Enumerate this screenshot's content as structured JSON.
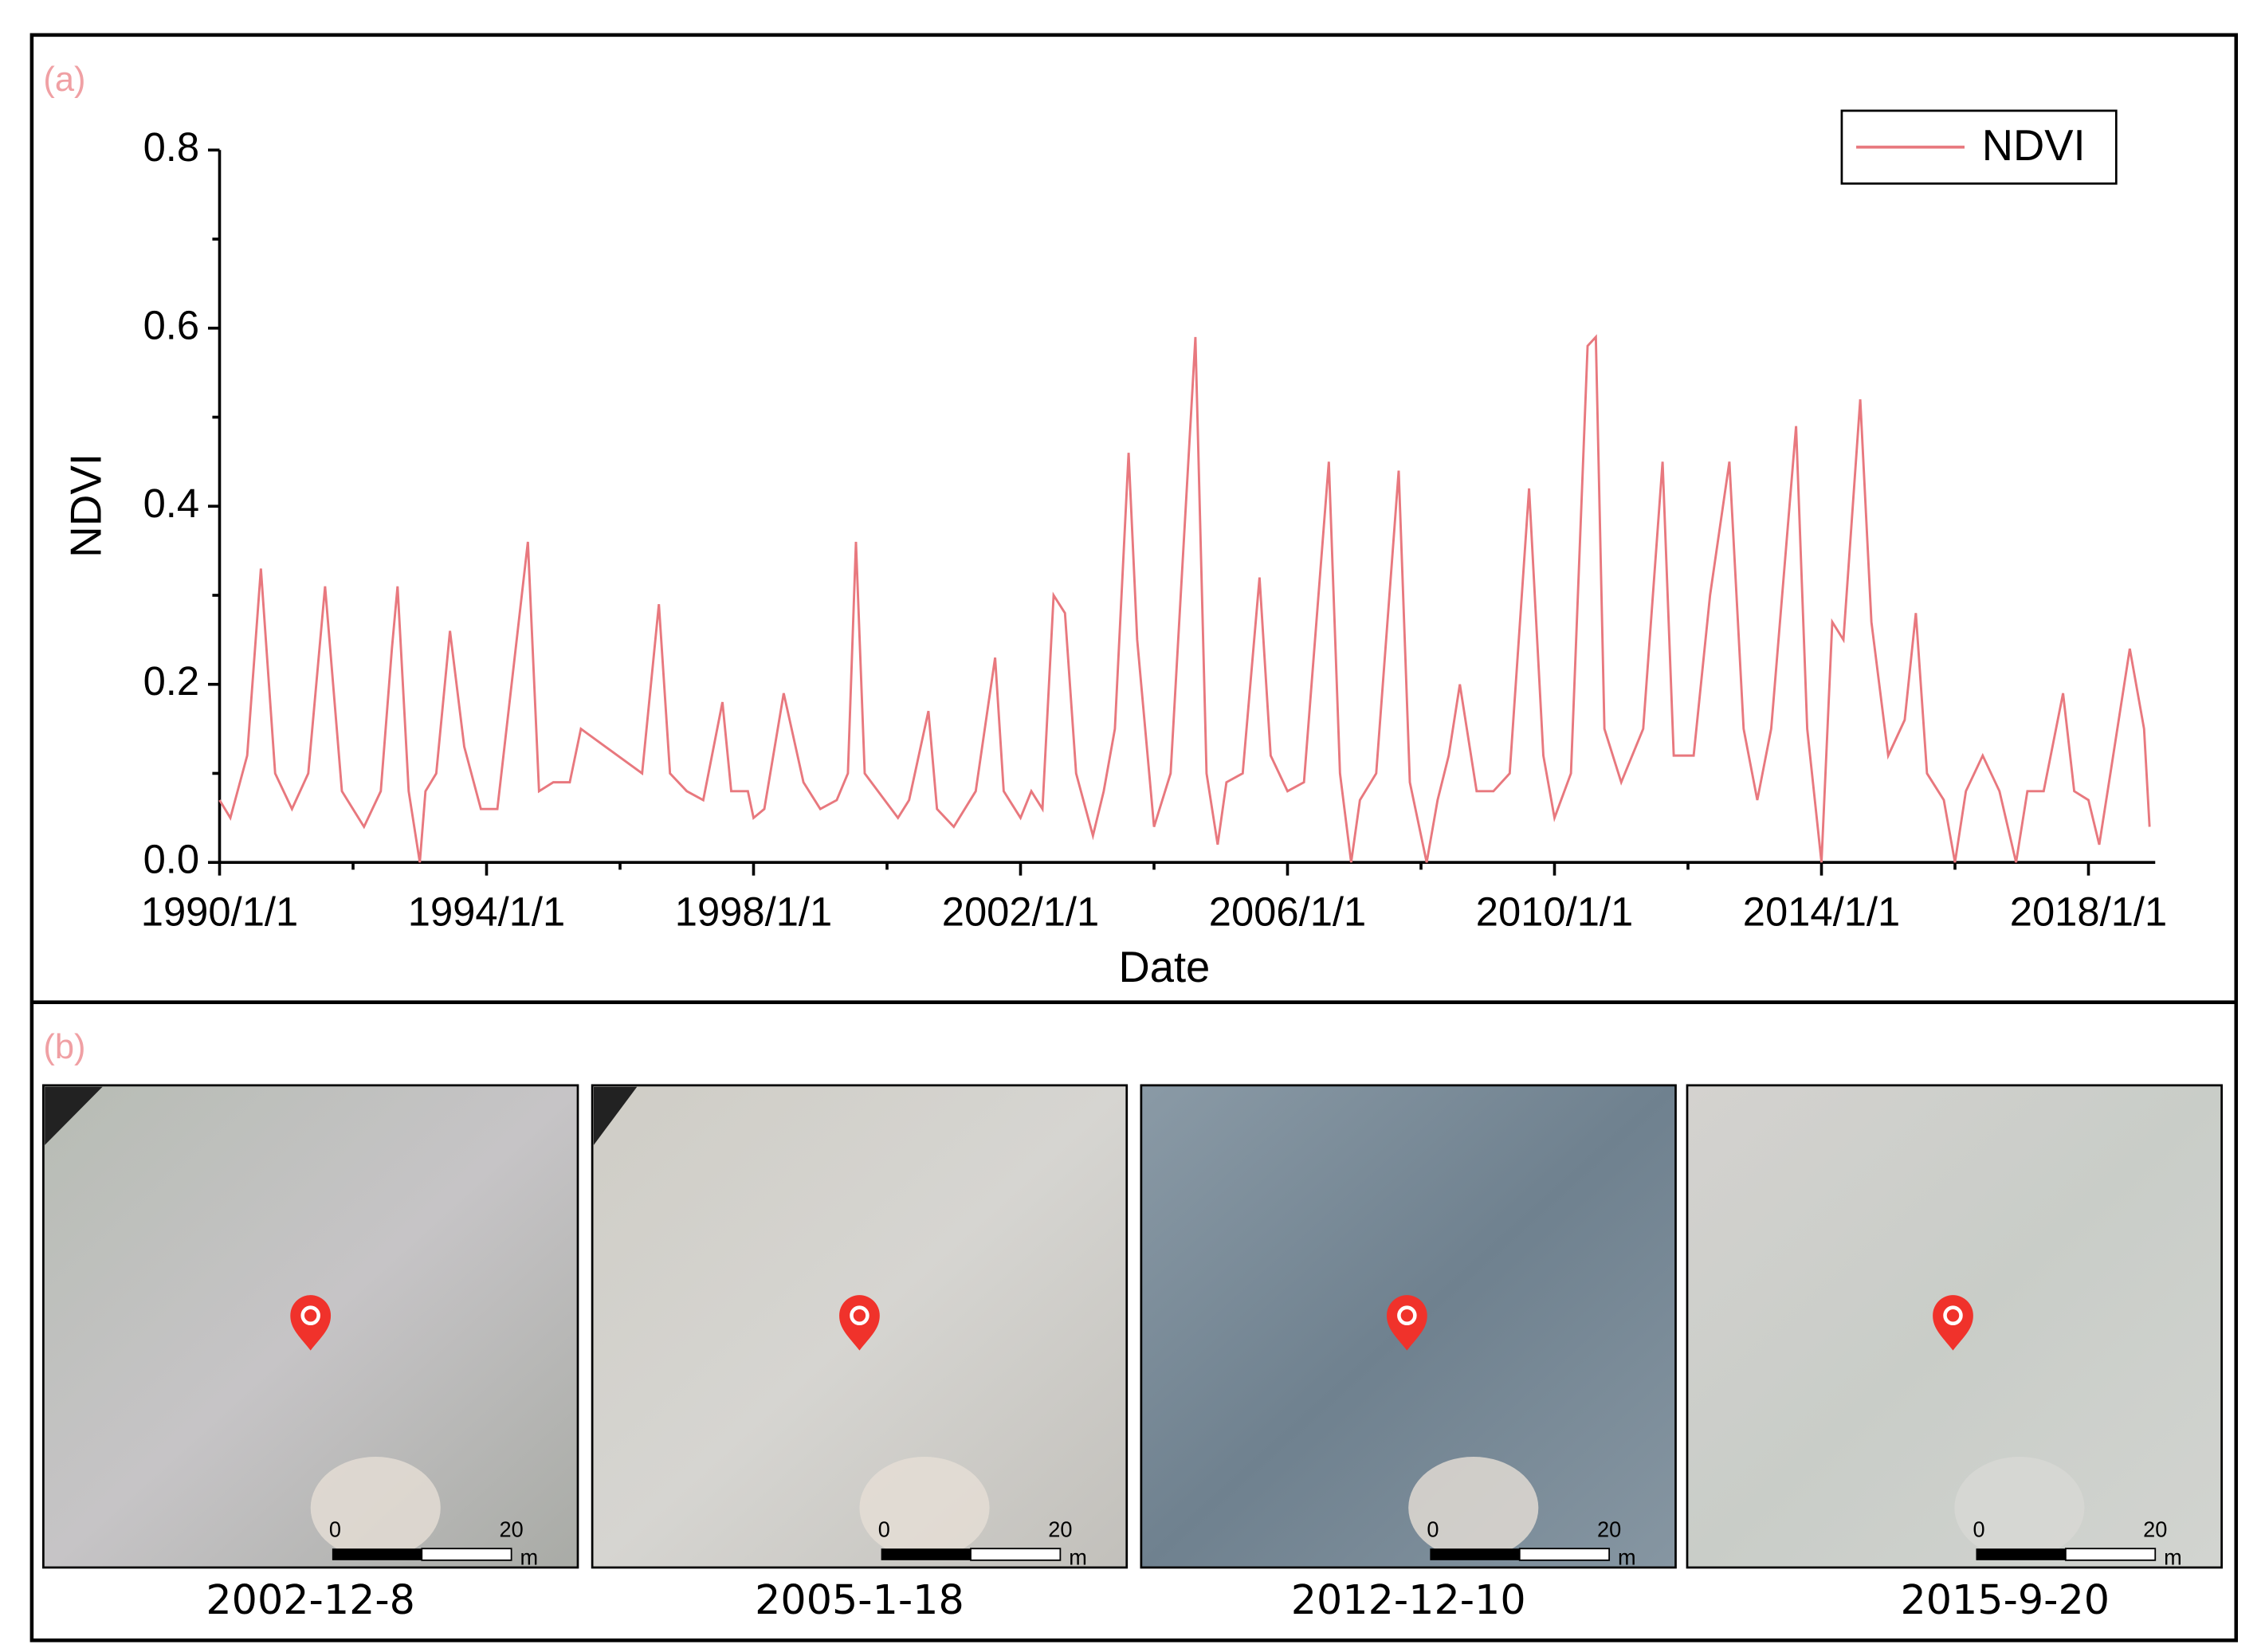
{
  "chart_data": {
    "type": "line",
    "panel_label": "(a)",
    "x_label": "Date",
    "y_label": "NDVI",
    "legend": "upper right",
    "xlim": [
      "1990/1/1",
      "2019/1/1"
    ],
    "xticks": [
      "1990/1/1",
      "1994/1/1",
      "1998/1/1",
      "2002/1/1",
      "2006/1/1",
      "2010/1/1",
      "2014/1/1",
      "2018/1/1"
    ],
    "ylim": [
      0,
      0.8
    ],
    "yticks": [
      {
        "value": 0,
        "label": "0.0"
      },
      0.2,
      0.4,
      0.6,
      0.8
    ],
    "x": [
      "1990/1/1",
      "1990/3/1",
      "1990/6/1",
      "1990/8/15",
      "1990/11/1",
      "1991/2/1",
      "1991/5/1",
      "1991/8/1",
      "1991/11/1",
      "1992/3/1",
      "1992/6/1",
      "1992/8/1",
      "1992/9/1",
      "1992/11/1",
      "1993/1/1",
      "1993/2/1",
      "1993/4/1",
      "1993/6/15",
      "1993/9/1",
      "1993/12/1",
      "1994/3/1",
      "1994/8/15",
      "1994/10/15",
      "1995/1/1",
      "1995/4/1",
      "1995/6/1",
      "1996/5/1",
      "1996/8/1",
      "1996/10/1",
      "1997/1/1",
      "1997/4/1",
      "1997/7/15",
      "1997/9/1",
      "1997/12/1",
      "1998/1/1",
      "1998/3/1",
      "1998/6/15",
      "1998/10/1",
      "1999/1/1",
      "1999/4/1",
      "1999/6/1",
      "1999/7/15",
      "1999/9/1",
      "2000/3/1",
      "2000/5/1",
      "2000/8/15",
      "2000/10/1",
      "2001/1/1",
      "2001/5/1",
      "2001/8/15",
      "2001/10/1",
      "2002/1/1",
      "2002/3/1",
      "2002/5/1",
      "2002/7/1",
      "2002/9/1",
      "2002/11/1",
      "2003/2/1",
      "2003/4/1",
      "2003/6/1",
      "2003/8/15",
      "2003/10/1",
      "2004/1/1",
      "2004/4/1",
      "2004/8/15",
      "2004/10/15",
      "2004/12/15",
      "2005/2/1",
      "2005/5/1",
      "2005/8/1",
      "2005/10/1",
      "2006/1/1",
      "2006/4/1",
      "2006/8/15",
      "2006/10/15",
      "2006/12/15",
      "2007/2/1",
      "2007/5/1",
      "2007/9/1",
      "2007/11/1",
      "2008/2/1",
      "2008/4/1",
      "2008/6/1",
      "2008/8/1",
      "2008/11/1",
      "2009/2/1",
      "2009/5/1",
      "2009/8/15",
      "2009/11/1",
      "2010/1/1",
      "2010/4/1",
      "2010/7/1",
      "2010/8/15",
      "2010/10/1",
      "2011/1/1",
      "2011/5/1",
      "2011/8/15",
      "2011/10/15",
      "2012/2/1",
      "2012/5/1",
      "2012/8/15",
      "2012/11/1",
      "2013/1/15",
      "2013/4/1",
      "2013/8/15",
      "2013/10/15",
      "2014/1/1",
      "2014/3/1",
      "2014/5/1",
      "2014/8/1",
      "2014/10/1",
      "2015/1/1",
      "2015/4/1",
      "2015/6/1",
      "2015/8/1",
      "2015/11/1",
      "2016/1/1",
      "2016/3/1",
      "2016/6/1",
      "2016/9/1",
      "2016/12/1",
      "2017/2/1",
      "2017/5/1",
      "2017/8/15",
      "2017/10/15",
      "2018/1/1",
      "2018/3/1",
      "2018/5/1",
      "2018/8/15",
      "2018/11/1",
      "2018/12/1"
    ],
    "series": [
      {
        "name": "NDVI",
        "color": "#e8787e",
        "values": [
          0.07,
          0.05,
          0.12,
          0.33,
          0.1,
          0.06,
          0.1,
          0.31,
          0.08,
          0.04,
          0.08,
          0.24,
          0.31,
          0.08,
          0.0,
          0.08,
          0.1,
          0.26,
          0.13,
          0.06,
          0.06,
          0.36,
          0.08,
          0.09,
          0.09,
          0.15,
          0.1,
          0.29,
          0.1,
          0.08,
          0.07,
          0.18,
          0.08,
          0.08,
          0.05,
          0.06,
          0.19,
          0.09,
          0.06,
          0.07,
          0.1,
          0.36,
          0.1,
          0.05,
          0.07,
          0.17,
          0.06,
          0.04,
          0.08,
          0.23,
          0.08,
          0.05,
          0.08,
          0.06,
          0.3,
          0.28,
          0.1,
          0.03,
          0.08,
          0.15,
          0.46,
          0.25,
          0.04,
          0.1,
          0.59,
          0.1,
          0.02,
          0.09,
          0.1,
          0.32,
          0.12,
          0.08,
          0.09,
          0.45,
          0.1,
          0.0,
          0.07,
          0.1,
          0.44,
          0.09,
          0.0,
          0.07,
          0.12,
          0.2,
          0.08,
          0.08,
          0.1,
          0.42,
          0.12,
          0.05,
          0.1,
          0.58,
          0.59,
          0.15,
          0.09,
          0.15,
          0.45,
          0.12,
          0.12,
          0.3,
          0.45,
          0.15,
          0.07,
          0.15,
          0.49,
          0.15,
          0.0,
          0.27,
          0.25,
          0.52,
          0.27,
          0.12,
          0.16,
          0.28,
          0.1,
          0.07,
          0.0,
          0.08,
          0.12,
          0.08,
          0.0,
          0.08,
          0.08,
          0.19,
          0.08,
          0.07,
          0.02,
          0.1,
          0.24,
          0.15,
          0.04
        ]
      }
    ]
  },
  "imagery": {
    "panel_label": "(b)",
    "images": [
      {
        "date": "2002-12-8",
        "scale_labels": [
          "0",
          "20",
          "m"
        ]
      },
      {
        "date": "2005-1-18",
        "scale_labels": [
          "0",
          "20",
          "m"
        ]
      },
      {
        "date": "2012-12-10",
        "scale_labels": [
          "0",
          "20",
          "m"
        ]
      },
      {
        "date": "2015-9-20",
        "scale_labels": [
          "0",
          "20",
          "m"
        ]
      }
    ]
  }
}
